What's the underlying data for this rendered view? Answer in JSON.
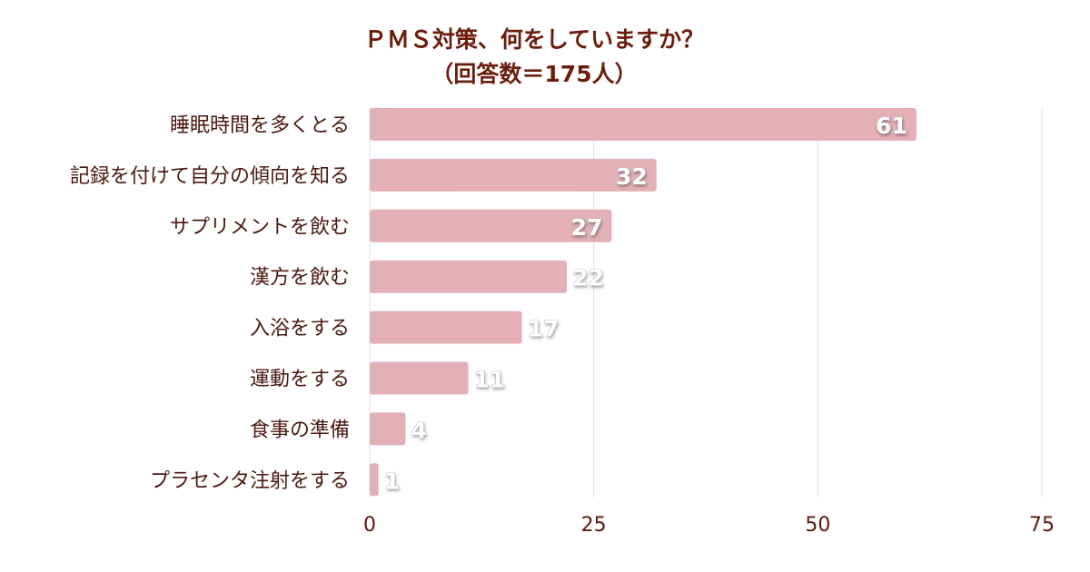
{
  "chart_data": {
    "type": "bar",
    "orientation": "horizontal",
    "title": "ＰＭＳ対策、何をしていますか？",
    "subtitle": "（回答数＝175人）",
    "categories": [
      "睡眠時間を多くとる",
      "記録を付けて自分の傾向を知る",
      "サプリメントを飲む",
      "漢方を飲む",
      "入浴をする",
      "運動をする",
      "食事の準備",
      "プラセンタ注射をする"
    ],
    "values": [
      61,
      32,
      27,
      22,
      17,
      11,
      4,
      1
    ],
    "xlim": [
      0,
      75
    ],
    "xticks": [
      0,
      25,
      50,
      75
    ],
    "xlabel": "",
    "ylabel": "",
    "grid": "vertical",
    "legend": "none",
    "bar_color": "#e4b0b8",
    "text_color": "#6b1e0e"
  }
}
